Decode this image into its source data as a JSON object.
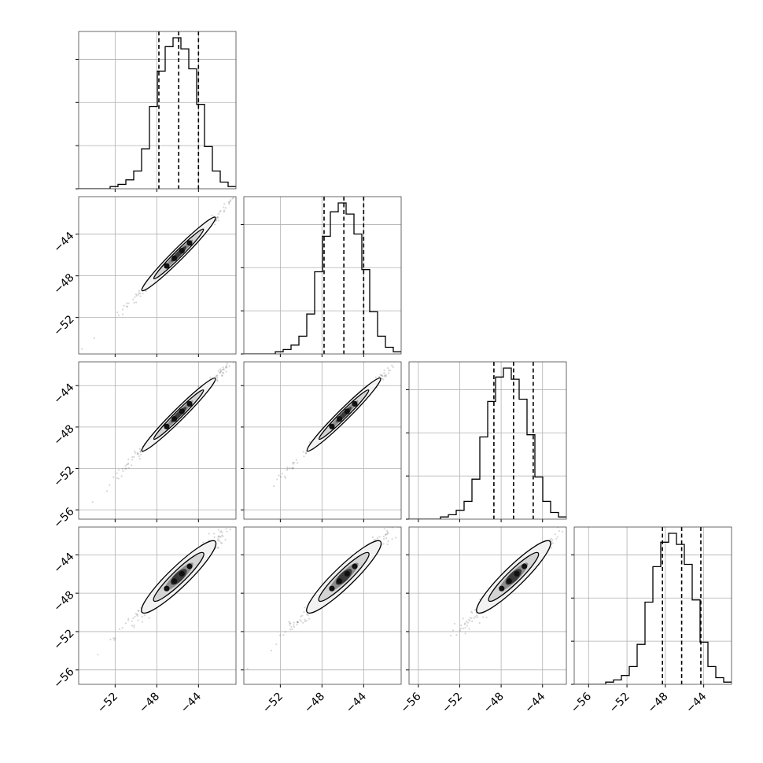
{
  "chart_data": {
    "type": "corner",
    "n_params": 4,
    "x_tick_labels": [
      [
        "−52",
        "−48",
        "−44"
      ],
      [
        "−52",
        "−48",
        "−44"
      ],
      [
        "−56",
        "−52",
        "−48",
        "−44"
      ],
      [
        "−56",
        "−52",
        "−48",
        "−44"
      ]
    ],
    "y_tick_labels": [
      [],
      [
        "−44",
        "−48",
        "−52"
      ],
      [
        "−44",
        "−48",
        "−52",
        "−56"
      ],
      [
        "−44",
        "−48",
        "−52",
        "−56"
      ]
    ],
    "params": [
      {
        "xlim": [
          -55.5,
          -40.4
        ],
        "ticks": [
          -52,
          -48,
          -44
        ],
        "quantiles": [
          -47.8,
          -45.9,
          -44.0
        ],
        "hist_counts": [
          0,
          0,
          0,
          0,
          1,
          2,
          4,
          8,
          18,
          37,
          53,
          64,
          68,
          63,
          54,
          38,
          19,
          8,
          3,
          1
        ]
      },
      {
        "xlim": [
          -55.5,
          -40.4
        ],
        "ticks": [
          -52,
          -48,
          -44
        ],
        "quantiles": [
          -47.8,
          -45.9,
          -44.0
        ],
        "hist_counts": [
          0,
          0,
          0,
          0,
          1,
          2,
          4,
          8,
          18,
          37,
          53,
          64,
          68,
          63,
          54,
          38,
          19,
          8,
          3,
          1
        ]
      },
      {
        "xlim": [
          -56.9,
          -41.7
        ],
        "ticks": [
          -56,
          -52,
          -48,
          -44
        ],
        "quantiles": [
          -48.7,
          -46.8,
          -44.9
        ],
        "hist_counts": [
          0,
          0,
          0,
          0,
          1,
          2,
          4,
          8,
          18,
          37,
          53,
          64,
          68,
          63,
          54,
          38,
          19,
          8,
          3,
          1
        ]
      },
      {
        "xlim": [
          -57.5,
          -41.1
        ],
        "ticks": [
          -56,
          -52,
          -48,
          -44
        ],
        "quantiles": [
          -48.3,
          -46.3,
          -44.3
        ],
        "hist_counts": [
          0,
          0,
          0,
          0,
          1,
          2,
          4,
          8,
          18,
          37,
          53,
          64,
          68,
          63,
          54,
          38,
          19,
          8,
          3,
          1
        ]
      }
    ],
    "line_color": "#000000",
    "grid_color": "#b0b0b0",
    "sample_color": "#000000",
    "contour_fills": [
      "#f2f2f2",
      "#d4d4d4",
      "#8c8c8c",
      "#3a3a3a"
    ],
    "quantile_style": "dashed",
    "grid": true
  }
}
